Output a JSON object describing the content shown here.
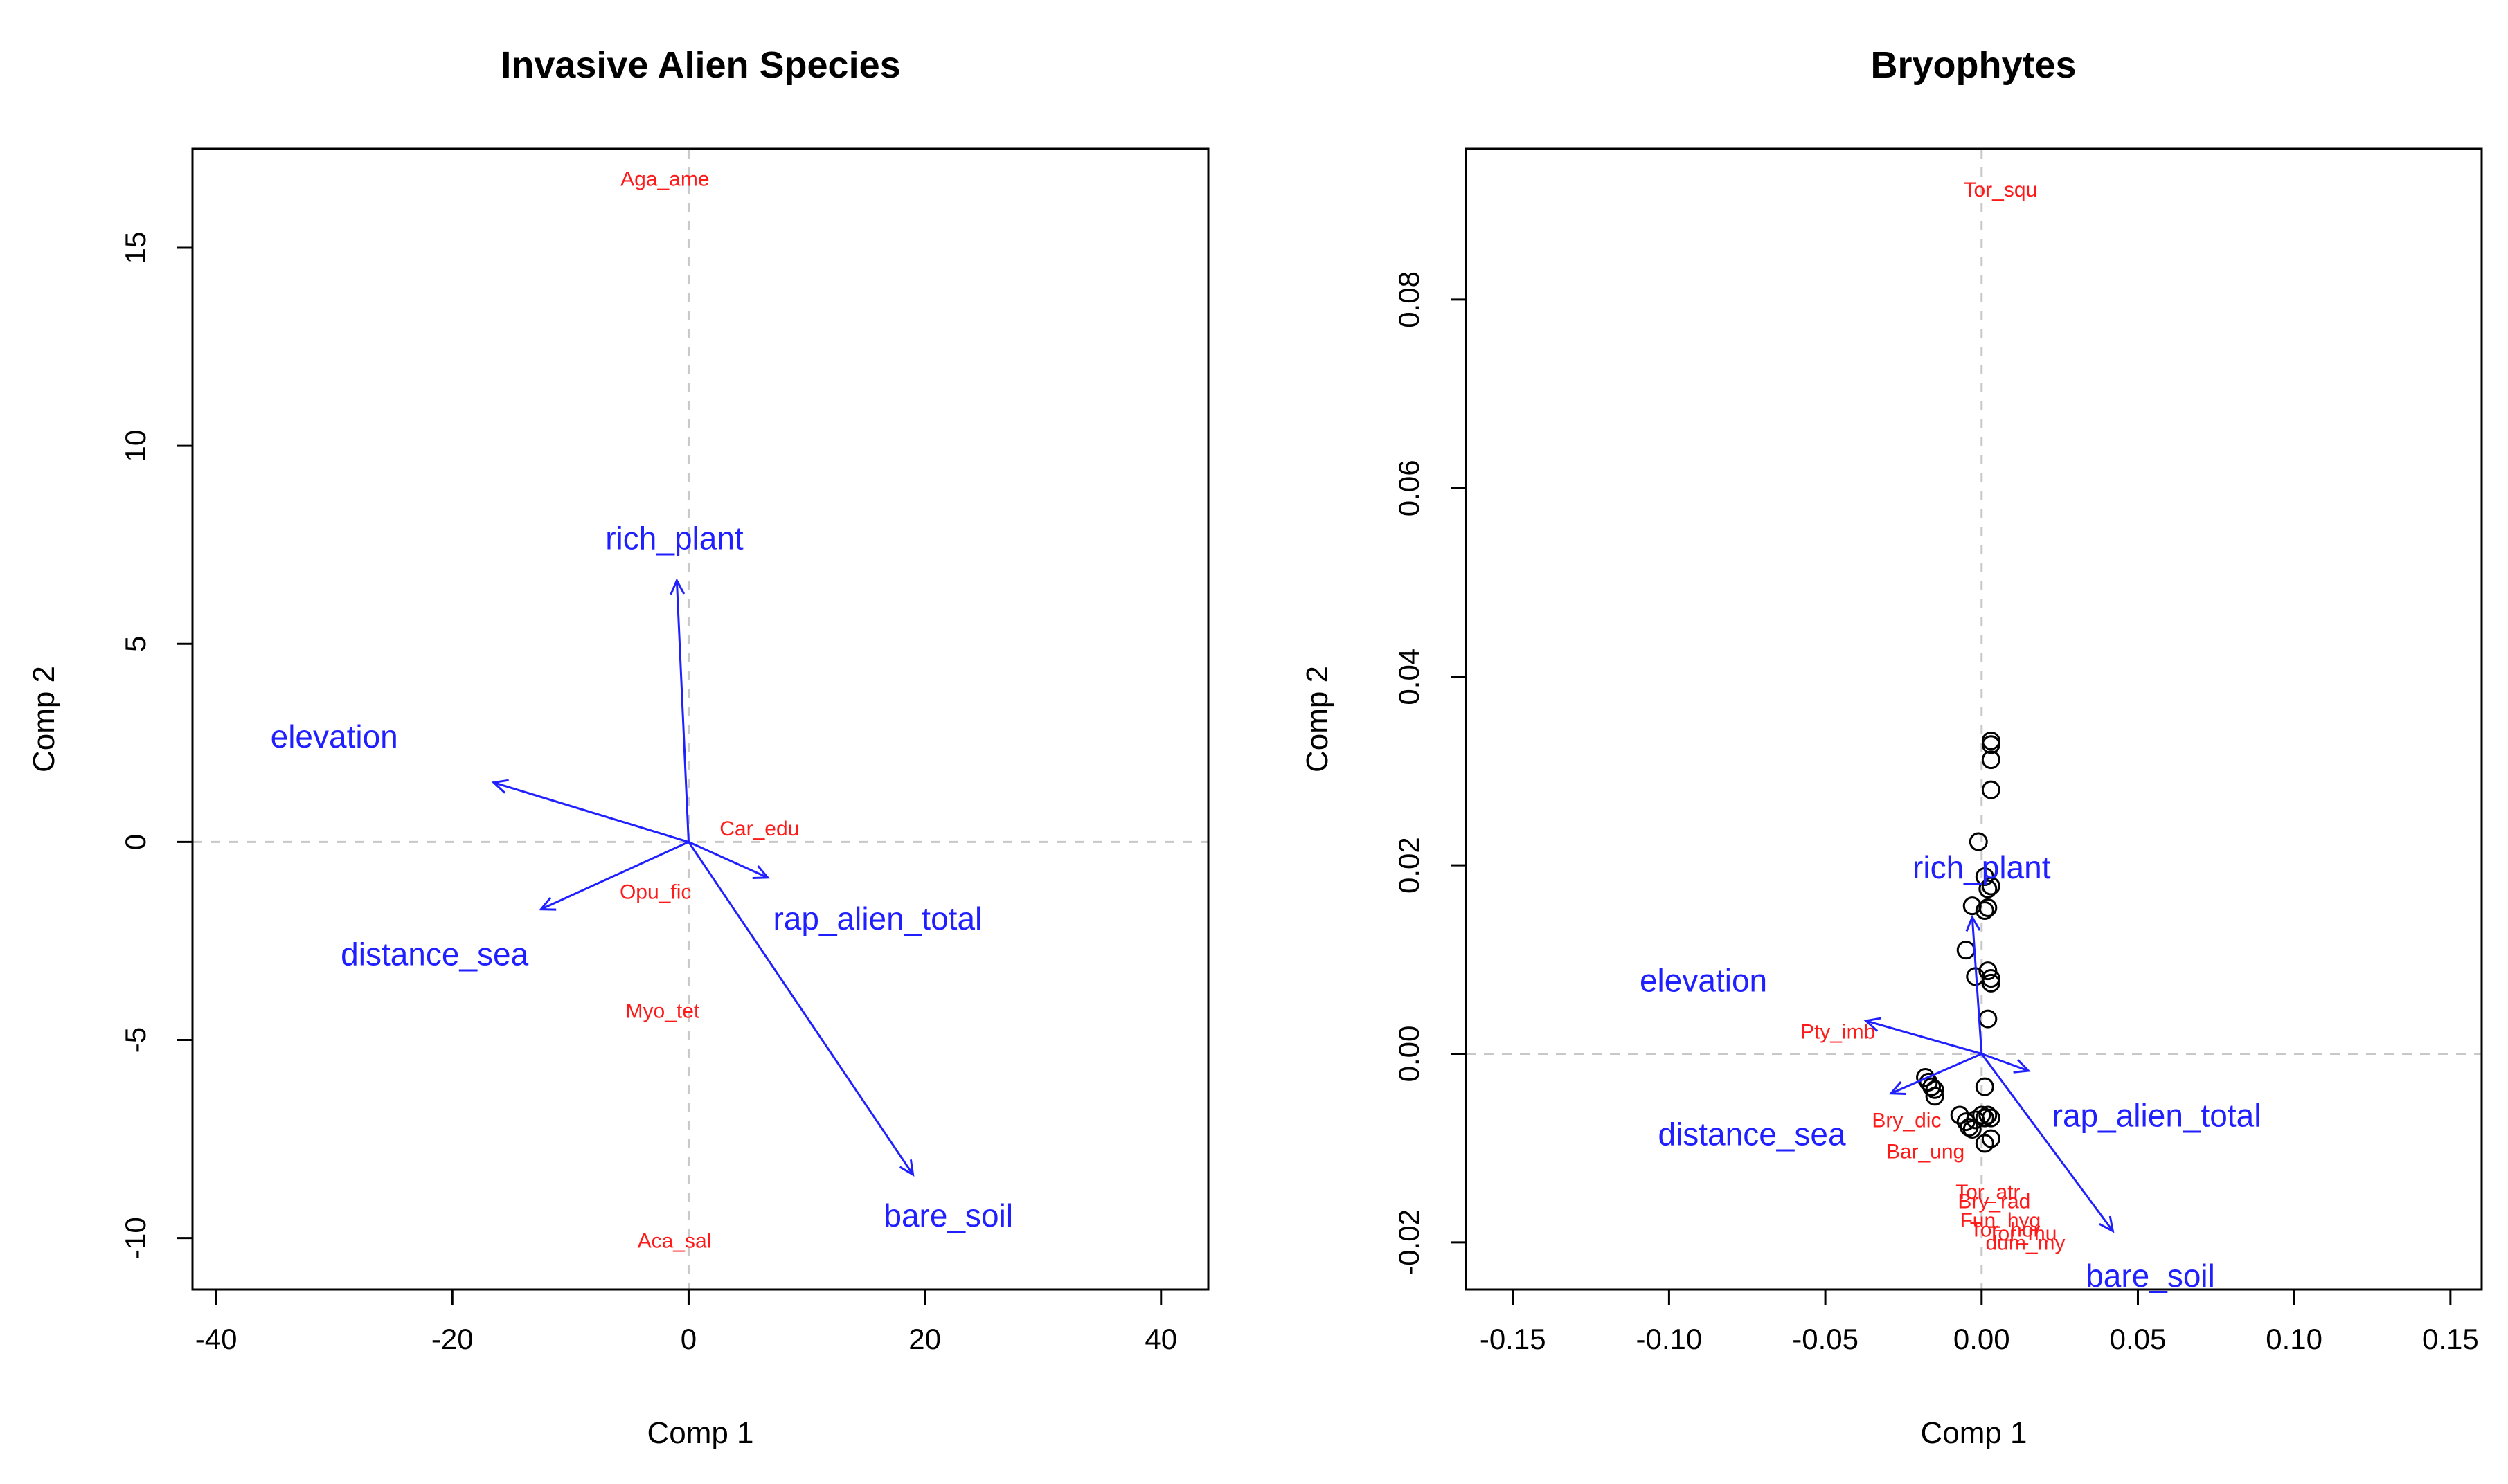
{
  "chart_data": [
    {
      "type": "biplot",
      "title": "Invasive Alien Species",
      "xlabel": "Comp 1",
      "ylabel": "Comp 2",
      "xlim": [
        -42,
        44
      ],
      "ylim": [
        -11.3,
        17.5
      ],
      "xticks": [
        -40,
        -20,
        0,
        20,
        40
      ],
      "yticks": [
        -10,
        -5,
        0,
        5,
        10,
        15
      ],
      "zero_lines": true,
      "vectors": [
        {
          "name": "rich_plant",
          "x": -1,
          "y": 6.6,
          "label_x": -1.2,
          "label_y": 7.6
        },
        {
          "name": "elevation",
          "x": -16.5,
          "y": 1.5,
          "label_x": -30,
          "label_y": 2.6
        },
        {
          "name": "distance_sea",
          "x": -12.5,
          "y": -1.7,
          "label_x": -21.5,
          "label_y": -2.9
        },
        {
          "name": "rap_alien_total",
          "x": 6.7,
          "y": -0.9,
          "label_x": 16,
          "label_y": -2.0
        },
        {
          "name": "bare_soil",
          "x": 19,
          "y": -8.4,
          "label_x": 22,
          "label_y": -9.5
        }
      ],
      "species": [
        {
          "name": "Aga_ame",
          "x": -2,
          "y": 16.7
        },
        {
          "name": "Car_edu",
          "x": 6,
          "y": 0.3
        },
        {
          "name": "Opu_fic",
          "x": -2.8,
          "y": -1.3
        },
        {
          "name": "Myo_tet",
          "x": -2.2,
          "y": -4.3
        },
        {
          "name": "Aca_sal",
          "x": -1.2,
          "y": -10.1
        }
      ],
      "points": []
    },
    {
      "type": "biplot",
      "title": "Bryophytes",
      "xlabel": "Comp 1",
      "ylabel": "Comp 2",
      "xlim": [
        -0.165,
        0.16
      ],
      "ylim": [
        -0.025,
        0.096
      ],
      "xticks": [
        -0.15,
        -0.1,
        -0.05,
        0.0,
        0.05,
        0.1,
        0.15
      ],
      "xtick_labels": [
        "-0.15",
        "-0.10",
        "-0.05",
        "0.00",
        "0.05",
        "0.10",
        "0.15"
      ],
      "yticks": [
        -0.02,
        0.0,
        0.02,
        0.04,
        0.06,
        0.08
      ],
      "ytick_labels": [
        "-0.02",
        "0.00",
        "0.02",
        "0.04",
        "0.06",
        "0.08"
      ],
      "zero_lines": true,
      "vectors": [
        {
          "name": "rich_plant",
          "x": -0.003,
          "y": 0.0145,
          "label_x": 0.0,
          "label_y": 0.0195
        },
        {
          "name": "elevation",
          "x": -0.037,
          "y": 0.0035,
          "label_x": -0.089,
          "label_y": 0.0075
        },
        {
          "name": "distance_sea",
          "x": -0.029,
          "y": -0.0042,
          "label_x": -0.0735,
          "label_y": -0.0088
        },
        {
          "name": "rap_alien_total",
          "x": 0.015,
          "y": -0.0018,
          "label_x": 0.056,
          "label_y": -0.0068
        },
        {
          "name": "bare_soil",
          "x": 0.042,
          "y": -0.0188,
          "label_x": 0.054,
          "label_y": -0.0238
        }
      ],
      "species": [
        {
          "name": "Tor_squ",
          "x": 0.006,
          "y": 0.0915
        },
        {
          "name": "Pty_imb",
          "x": -0.046,
          "y": 0.0022
        },
        {
          "name": "Bry_dic",
          "x": -0.024,
          "y": -0.0072
        },
        {
          "name": "Bar_ung",
          "x": -0.018,
          "y": -0.0105
        },
        {
          "name": "Tor_atr",
          "x": 0.002,
          "y": -0.0148
        },
        {
          "name": "Bry_rad",
          "x": 0.004,
          "y": -0.0158
        },
        {
          "name": "Fun_hyg",
          "x": 0.006,
          "y": -0.0178
        },
        {
          "name": "Tor_hor",
          "x": 0.0075,
          "y": -0.0188
        },
        {
          "name": "Tor_mu",
          "x": 0.013,
          "y": -0.0192
        },
        {
          "name": "dum_my",
          "x": 0.014,
          "y": -0.0202
        }
      ],
      "points": [
        {
          "x": 0.003,
          "y": 0.0332
        },
        {
          "x": 0.003,
          "y": 0.0328
        },
        {
          "x": 0.003,
          "y": 0.0312
        },
        {
          "x": 0.003,
          "y": 0.028
        },
        {
          "x": -0.001,
          "y": 0.0225
        },
        {
          "x": 0.001,
          "y": 0.0188
        },
        {
          "x": 0.003,
          "y": 0.0178
        },
        {
          "x": 0.002,
          "y": 0.0175
        },
        {
          "x": 0.002,
          "y": 0.0155
        },
        {
          "x": 0.001,
          "y": 0.0152
        },
        {
          "x": -0.003,
          "y": 0.0157
        },
        {
          "x": -0.005,
          "y": 0.011
        },
        {
          "x": -0.002,
          "y": 0.0082
        },
        {
          "x": 0.002,
          "y": 0.0088
        },
        {
          "x": 0.003,
          "y": 0.008
        },
        {
          "x": 0.003,
          "y": 0.0075
        },
        {
          "x": 0.002,
          "y": 0.0037
        },
        {
          "x": -0.018,
          "y": -0.0025
        },
        {
          "x": -0.017,
          "y": -0.003
        },
        {
          "x": -0.016,
          "y": -0.0035
        },
        {
          "x": -0.015,
          "y": -0.0038
        },
        {
          "x": -0.015,
          "y": -0.0045
        },
        {
          "x": 0.001,
          "y": -0.0035
        },
        {
          "x": -0.007,
          "y": -0.0065
        },
        {
          "x": -0.005,
          "y": -0.0072
        },
        {
          "x": -0.004,
          "y": -0.0078
        },
        {
          "x": -0.003,
          "y": -0.008
        },
        {
          "x": -0.002,
          "y": -0.007
        },
        {
          "x": 0.0,
          "y": -0.0065
        },
        {
          "x": 0.001,
          "y": -0.0068
        },
        {
          "x": 0.002,
          "y": -0.0065
        },
        {
          "x": 0.003,
          "y": -0.0068
        },
        {
          "x": 0.003,
          "y": -0.009
        },
        {
          "x": 0.001,
          "y": -0.0095
        }
      ]
    }
  ]
}
